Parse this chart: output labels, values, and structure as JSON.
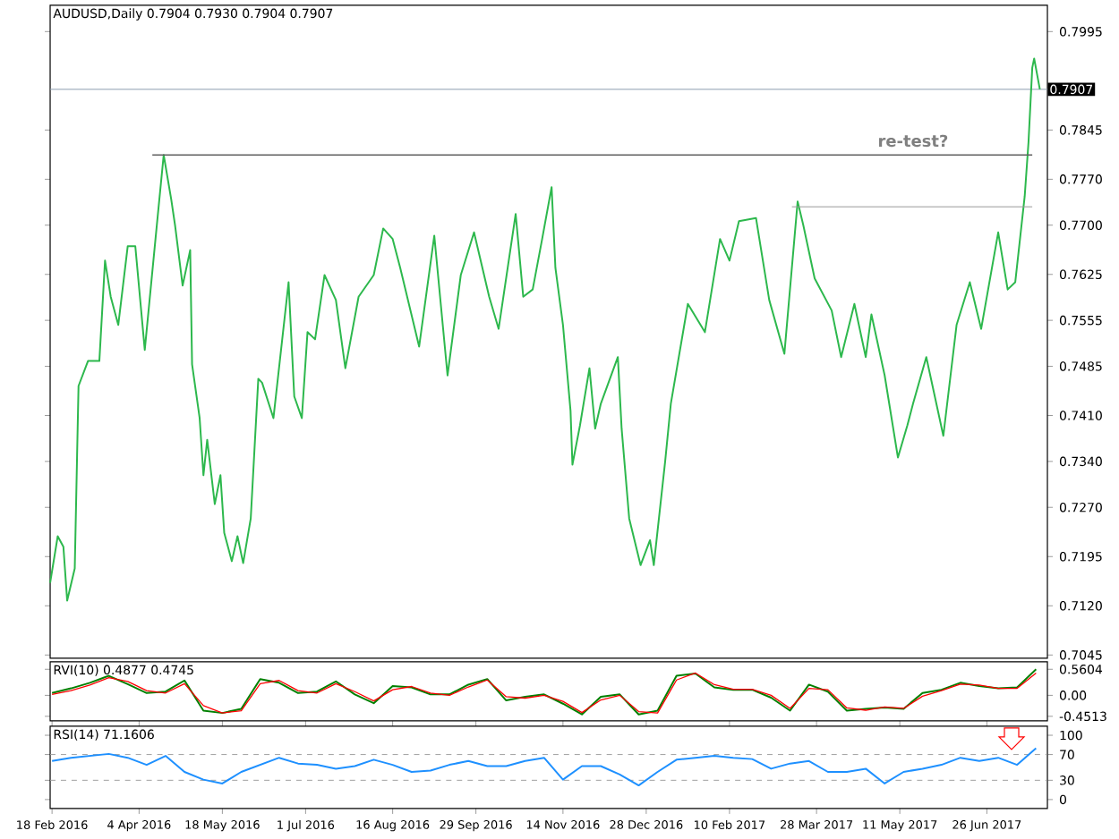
{
  "chart_data": [
    {
      "type": "line",
      "title": "AUDUSD,Daily 0.7904 0.7930 0.7904 0.7907",
      "tick_labels": "y",
      "xlim": [
        "2016-02-17",
        "2017-07-28"
      ],
      "ylim": [
        0.704,
        0.8035
      ],
      "yticks": [
        {
          "value": 0.7045,
          "label": "0.7045"
        },
        {
          "value": 0.712,
          "label": "0.7120"
        },
        {
          "value": 0.7195,
          "label": "0.7195"
        },
        {
          "value": 0.727,
          "label": "0.7270"
        },
        {
          "value": 0.734,
          "label": "0.7340"
        },
        {
          "value": 0.741,
          "label": "0.7410"
        },
        {
          "value": 0.7485,
          "label": "0.7485"
        },
        {
          "value": 0.7555,
          "label": "0.7555"
        },
        {
          "value": 0.7625,
          "label": "0.7625"
        },
        {
          "value": 0.77,
          "label": "0.7700"
        },
        {
          "value": 0.777,
          "label": "0.7770"
        },
        {
          "value": 0.7845,
          "label": "0.7845"
        },
        {
          "value": 0.7995,
          "label": "0.7995"
        }
      ],
      "ref_lines": [
        {
          "axis": "y",
          "value": 0.7907,
          "label": "0.7907",
          "color": "#8d9db0"
        }
      ],
      "annotations": [
        {
          "text": "re-test?",
          "x": "2017-05-18",
          "y": 0.7807
        }
      ],
      "series": [
        {
          "color": "#2db84d",
          "x": [
            "2016-02-17",
            "2016-02-21",
            "2016-02-24",
            "2016-02-26",
            "2016-03-01",
            "2016-03-03",
            "2016-03-08",
            "2016-03-14",
            "2016-03-17",
            "2016-03-20",
            "2016-03-24",
            "2016-03-29",
            "2016-04-02",
            "2016-04-07",
            "2016-04-13",
            "2016-04-17",
            "2016-04-21",
            "2016-04-23",
            "2016-04-27",
            "2016-05-01",
            "2016-05-02",
            "2016-05-06",
            "2016-05-08",
            "2016-05-10",
            "2016-05-14",
            "2016-05-17",
            "2016-05-19",
            "2016-05-23",
            "2016-05-26",
            "2016-05-29",
            "2016-06-02",
            "2016-06-06",
            "2016-06-08",
            "2016-06-14",
            "2016-06-22",
            "2016-06-25",
            "2016-06-29",
            "2016-07-02",
            "2016-07-06",
            "2016-07-11",
            "2016-07-17",
            "2016-07-22",
            "2016-07-29",
            "2016-08-06",
            "2016-08-11",
            "2016-08-16",
            "2016-08-20",
            "2016-08-30",
            "2016-09-07",
            "2016-09-14",
            "2016-09-21",
            "2016-09-28",
            "2016-10-06",
            "2016-10-11",
            "2016-10-20",
            "2016-10-24",
            "2016-10-29",
            "2016-11-03",
            "2016-11-08",
            "2016-11-10",
            "2016-11-14",
            "2016-11-18",
            "2016-11-19",
            "2016-11-23",
            "2016-11-28",
            "2016-12-01",
            "2016-12-04",
            "2016-12-13",
            "2016-12-15",
            "2016-12-19",
            "2016-12-25",
            "2016-12-30",
            "2017-01-01",
            "2017-01-07",
            "2017-01-10",
            "2017-01-19",
            "2017-01-28",
            "2017-02-05",
            "2017-02-10",
            "2017-02-15",
            "2017-02-24",
            "2017-03-03",
            "2017-03-11",
            "2017-03-18",
            "2017-03-21",
            "2017-03-27",
            "2017-04-05",
            "2017-04-10",
            "2017-04-17",
            "2017-04-23",
            "2017-04-26",
            "2017-05-03",
            "2017-05-10",
            "2017-05-15",
            "2017-05-18",
            "2017-05-25",
            "2017-06-03",
            "2017-06-10",
            "2017-06-17",
            "2017-06-23",
            "2017-07-02",
            "2017-07-07",
            "2017-07-11",
            "2017-07-16",
            "2017-07-18",
            "2017-07-20",
            "2017-07-21",
            "2017-07-24"
          ],
          "values": [
            0.7155,
            0.7226,
            0.721,
            0.7128,
            0.7177,
            0.7455,
            0.7493,
            0.7493,
            0.7646,
            0.7591,
            0.7548,
            0.7668,
            0.7668,
            0.751,
            0.7689,
            0.7807,
            0.7739,
            0.77,
            0.7608,
            0.7662,
            0.7488,
            0.7406,
            0.7319,
            0.7373,
            0.7275,
            0.7319,
            0.7231,
            0.7188,
            0.7226,
            0.7185,
            0.7253,
            0.7466,
            0.746,
            0.7406,
            0.7613,
            0.7439,
            0.7406,
            0.7537,
            0.7526,
            0.7624,
            0.7586,
            0.7482,
            0.7591,
            0.7624,
            0.7695,
            0.7679,
            0.7635,
            0.7515,
            0.7684,
            0.7471,
            0.7624,
            0.7689,
            0.7591,
            0.7542,
            0.7717,
            0.7591,
            0.7602,
            0.7679,
            0.7758,
            0.7635,
            0.7548,
            0.7417,
            0.7335,
            0.7395,
            0.7482,
            0.739,
            0.7428,
            0.7499,
            0.739,
            0.7253,
            0.7182,
            0.722,
            0.7182,
            0.734,
            0.7428,
            0.758,
            0.7537,
            0.7679,
            0.7646,
            0.7706,
            0.7711,
            0.7586,
            0.7504,
            0.7736,
            0.77,
            0.7619,
            0.757,
            0.7499,
            0.758,
            0.7499,
            0.7564,
            0.7471,
            0.7346,
            0.7395,
            0.7428,
            0.7499,
            0.7379,
            0.7548,
            0.7613,
            0.7542,
            0.7689,
            0.7602,
            0.7613,
            0.7744,
            0.7826,
            0.794,
            0.7954,
            0.7907
          ]
        },
        {
          "type": "line",
          "color": "#606060",
          "x": [
            "2016-04-11",
            "2017-07-20"
          ],
          "values": [
            0.7807,
            0.7807
          ]
        },
        {
          "type": "line",
          "color": "#9a9a9a",
          "x": [
            "2017-03-15",
            "2017-07-20"
          ],
          "values": [
            0.7728,
            0.7728
          ]
        }
      ]
    },
    {
      "type": "line",
      "title": "RVI(10) 0.4877 0.4745",
      "tick_labels": "y",
      "xlim": [
        "2016-02-17",
        "2017-07-28"
      ],
      "ylim": [
        -0.55,
        0.72
      ],
      "yticks": [
        0.5604,
        {
          "value": 0,
          "label": "0.00"
        },
        -0.4513
      ],
      "x": [
        "2016-02-18",
        "2016-02-28",
        "2016-03-09",
        "2016-03-19",
        "2016-03-29",
        "2016-04-08",
        "2016-04-18",
        "2016-04-28",
        "2016-05-08",
        "2016-05-18",
        "2016-05-28",
        "2016-06-07",
        "2016-06-17",
        "2016-06-27",
        "2016-07-07",
        "2016-07-17",
        "2016-07-27",
        "2016-08-06",
        "2016-08-16",
        "2016-08-26",
        "2016-09-05",
        "2016-09-15",
        "2016-09-25",
        "2016-10-05",
        "2016-10-15",
        "2016-10-25",
        "2016-11-04",
        "2016-11-14",
        "2016-11-24",
        "2016-12-04",
        "2016-12-14",
        "2016-12-24",
        "2017-01-03",
        "2017-01-13",
        "2017-01-23",
        "2017-02-02",
        "2017-02-12",
        "2017-02-22",
        "2017-03-04",
        "2017-03-14",
        "2017-03-24",
        "2017-04-03",
        "2017-04-13",
        "2017-04-23",
        "2017-05-03",
        "2017-05-13",
        "2017-05-23",
        "2017-06-02",
        "2017-06-12",
        "2017-06-22",
        "2017-07-02",
        "2017-07-12",
        "2017-07-22"
      ],
      "series": [
        {
          "color": "#008000",
          "values": [
            0.05,
            0.15,
            0.27,
            0.42,
            0.24,
            0.05,
            0.08,
            0.32,
            -0.33,
            -0.38,
            -0.29,
            0.35,
            0.27,
            0.05,
            0.08,
            0.3,
            0.02,
            -0.17,
            0.2,
            0.17,
            0.02,
            0.02,
            0.23,
            0.35,
            -0.11,
            -0.03,
            0.02,
            -0.18,
            -0.41,
            -0.03,
            0.02,
            -0.41,
            -0.33,
            0.42,
            0.47,
            0.17,
            0.12,
            0.12,
            -0.05,
            -0.33,
            0.23,
            0.08,
            -0.33,
            -0.29,
            -0.26,
            -0.29,
            0.05,
            0.12,
            0.27,
            0.2,
            0.15,
            0.17,
            0.56
          ]
        },
        {
          "color": "#ff0000",
          "values": [
            0.02,
            0.1,
            0.22,
            0.38,
            0.3,
            0.1,
            0.05,
            0.25,
            -0.22,
            -0.38,
            -0.33,
            0.25,
            0.32,
            0.1,
            0.05,
            0.25,
            0.08,
            -0.12,
            0.12,
            0.19,
            0.05,
            0.0,
            0.18,
            0.33,
            -0.03,
            -0.06,
            0.0,
            -0.13,
            -0.37,
            -0.1,
            0.0,
            -0.35,
            -0.38,
            0.33,
            0.48,
            0.23,
            0.13,
            0.13,
            0.0,
            -0.28,
            0.15,
            0.12,
            -0.27,
            -0.32,
            -0.25,
            -0.28,
            -0.02,
            0.1,
            0.24,
            0.22,
            0.15,
            0.15,
            0.48
          ]
        }
      ]
    },
    {
      "type": "line",
      "title": "RSI(14) 71.1606",
      "xlim": [
        "2016-02-17",
        "2017-07-28"
      ],
      "xticks": [
        {
          "value": "2016-02-18",
          "label": "18 Feb 2016"
        },
        {
          "value": "2016-04-04",
          "label": "4 Apr 2016"
        },
        {
          "value": "2016-05-18",
          "label": "18 May 2016"
        },
        {
          "value": "2016-07-01",
          "label": "1 Jul 2016"
        },
        {
          "value": "2016-08-16",
          "label": "16 Aug 2016"
        },
        {
          "value": "2016-09-29",
          "label": "29 Sep 2016"
        },
        {
          "value": "2016-11-14",
          "label": "14 Nov 2016"
        },
        {
          "value": "2016-12-28",
          "label": "28 Dec 2016"
        },
        {
          "value": "2017-02-10",
          "label": "10 Feb 2017"
        },
        {
          "value": "2017-03-28",
          "label": "28 Mar 2017"
        },
        {
          "value": "2017-05-11",
          "label": "11 May 2017"
        },
        {
          "value": "2017-06-26",
          "label": "26 Jun 2017"
        }
      ],
      "ylim": [
        -14,
        114
      ],
      "yticks": [
        100,
        70,
        30,
        0
      ],
      "ref_lines": [
        {
          "axis": "y",
          "value": 70,
          "color": "#a0a0a0",
          "line_style": "dashed"
        },
        {
          "axis": "y",
          "value": 30,
          "color": "#a0a0a0",
          "line_style": "dashed"
        }
      ],
      "x": [
        "2016-02-18",
        "2016-02-28",
        "2016-03-09",
        "2016-03-19",
        "2016-03-29",
        "2016-04-08",
        "2016-04-18",
        "2016-04-28",
        "2016-05-08",
        "2016-05-18",
        "2016-05-28",
        "2016-06-07",
        "2016-06-17",
        "2016-06-27",
        "2016-07-07",
        "2016-07-17",
        "2016-07-27",
        "2016-08-06",
        "2016-08-16",
        "2016-08-26",
        "2016-09-05",
        "2016-09-15",
        "2016-09-25",
        "2016-10-05",
        "2016-10-15",
        "2016-10-25",
        "2016-11-04",
        "2016-11-14",
        "2016-11-24",
        "2016-12-04",
        "2016-12-14",
        "2016-12-24",
        "2017-01-03",
        "2017-01-13",
        "2017-01-23",
        "2017-02-02",
        "2017-02-12",
        "2017-02-22",
        "2017-03-04",
        "2017-03-14",
        "2017-03-24",
        "2017-04-03",
        "2017-04-13",
        "2017-04-23",
        "2017-05-03",
        "2017-05-13",
        "2017-05-23",
        "2017-06-02",
        "2017-06-12",
        "2017-06-22",
        "2017-07-02",
        "2017-07-12",
        "2017-07-22"
      ],
      "series": [
        {
          "color": "#1e90ff",
          "values": [
            60,
            65,
            68,
            71,
            65,
            54,
            68,
            43,
            31,
            25,
            43,
            54,
            65,
            56,
            54,
            48,
            52,
            62,
            54,
            43,
            45,
            54,
            60,
            52,
            52,
            60,
            65,
            31,
            52,
            52,
            39,
            22,
            43,
            62,
            65,
            68,
            65,
            63,
            48,
            56,
            60,
            43,
            43,
            48,
            25,
            43,
            48,
            54,
            65,
            60,
            65,
            54,
            80
          ]
        }
      ]
    }
  ]
}
